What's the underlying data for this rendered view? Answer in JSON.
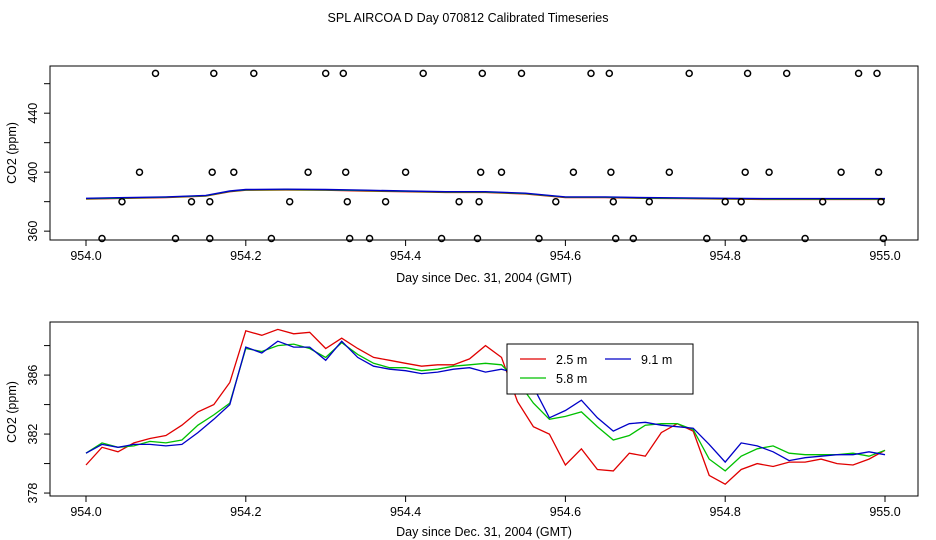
{
  "title": "SPL AIRCOA D  Day 070812  Calibrated Timeseries",
  "colors": {
    "s25": "#e00000",
    "s58": "#00c000",
    "s91": "#0000c8",
    "axis": "#000000"
  },
  "chart_data": [
    {
      "type": "scatter+line",
      "xlabel": "Day since Dec. 31, 2004 (GMT)",
      "ylabel": "CO2 (ppm)",
      "xlim": [
        954.0,
        955.0
      ],
      "ylim": [
        354,
        472
      ],
      "xticks": [
        954.0,
        954.2,
        954.4,
        954.6,
        954.8,
        955.0
      ],
      "xtick_labels": [
        "954.0",
        "954.2",
        "954.4",
        "954.6",
        "954.8",
        "955.0"
      ],
      "yticks": [
        360,
        400,
        440
      ],
      "ytick_labels": [
        "360",
        "400",
        "440"
      ],
      "points": [
        [
          954.02,
          355
        ],
        [
          954.045,
          380
        ],
        [
          954.067,
          400
        ],
        [
          954.087,
          467
        ],
        [
          954.112,
          355
        ],
        [
          954.132,
          380
        ],
        [
          954.155,
          380
        ],
        [
          954.155,
          355
        ],
        [
          954.158,
          400
        ],
        [
          954.16,
          467
        ],
        [
          954.185,
          400
        ],
        [
          954.21,
          467
        ],
        [
          954.232,
          355
        ],
        [
          954.255,
          380
        ],
        [
          954.278,
          400
        ],
        [
          954.3,
          467
        ],
        [
          954.322,
          467
        ],
        [
          954.325,
          400
        ],
        [
          954.327,
          380
        ],
        [
          954.33,
          355
        ],
        [
          954.355,
          355
        ],
        [
          954.375,
          380
        ],
        [
          954.4,
          400
        ],
        [
          954.422,
          467
        ],
        [
          954.445,
          355
        ],
        [
          954.467,
          380
        ],
        [
          954.49,
          355
        ],
        [
          954.492,
          380
        ],
        [
          954.494,
          400
        ],
        [
          954.496,
          467
        ],
        [
          954.52,
          400
        ],
        [
          954.545,
          467
        ],
        [
          954.567,
          355
        ],
        [
          954.588,
          380
        ],
        [
          954.61,
          400
        ],
        [
          954.632,
          467
        ],
        [
          954.655,
          467
        ],
        [
          954.657,
          400
        ],
        [
          954.66,
          380
        ],
        [
          954.663,
          355
        ],
        [
          954.685,
          355
        ],
        [
          954.705,
          380
        ],
        [
          954.73,
          400
        ],
        [
          954.755,
          467
        ],
        [
          954.777,
          355
        ],
        [
          954.8,
          380
        ],
        [
          954.82,
          380
        ],
        [
          954.823,
          355
        ],
        [
          954.825,
          400
        ],
        [
          954.828,
          467
        ],
        [
          954.855,
          400
        ],
        [
          954.877,
          467
        ],
        [
          954.9,
          355
        ],
        [
          954.922,
          380
        ],
        [
          954.945,
          400
        ],
        [
          954.967,
          467
        ],
        [
          954.99,
          467
        ],
        [
          954.992,
          400
        ],
        [
          954.995,
          380
        ],
        [
          954.998,
          355
        ]
      ],
      "series_smooth": {
        "x": [
          954.0,
          954.05,
          954.1,
          954.15,
          954.18,
          954.2,
          954.25,
          954.3,
          954.35,
          954.4,
          954.45,
          954.5,
          954.55,
          954.6,
          954.65,
          954.7,
          954.75,
          954.8,
          954.85,
          954.9,
          954.95,
          955.0
        ],
        "values": [
          382,
          382.5,
          383,
          384,
          387,
          388,
          388.2,
          388,
          387.5,
          387,
          386.5,
          386.5,
          385.5,
          383,
          383,
          382.5,
          382.3,
          382,
          381.8,
          381.8,
          381.8,
          381.8
        ]
      }
    },
    {
      "type": "line",
      "xlabel": "Day since Dec. 31, 2004 (GMT)",
      "ylabel": "CO2 (ppm)",
      "xlim": [
        954.0,
        955.0
      ],
      "ylim": [
        377.8,
        389.6
      ],
      "xticks": [
        954.0,
        954.2,
        954.4,
        954.6,
        954.8,
        955.0
      ],
      "xtick_labels": [
        "954.0",
        "954.2",
        "954.4",
        "954.6",
        "954.8",
        "955.0"
      ],
      "yticks": [
        378,
        382,
        386
      ],
      "ytick_labels": [
        "378",
        "382",
        "386"
      ],
      "legend": {
        "labels": [
          "2.5 m",
          "5.8 m",
          "9.1 m"
        ],
        "position": "upper-right"
      },
      "x": [
        954.0,
        954.02,
        954.04,
        954.06,
        954.08,
        954.1,
        954.12,
        954.14,
        954.16,
        954.18,
        954.2,
        954.22,
        954.24,
        954.26,
        954.28,
        954.3,
        954.32,
        954.34,
        954.36,
        954.38,
        954.4,
        954.42,
        954.44,
        954.46,
        954.48,
        954.5,
        954.52,
        954.54,
        954.56,
        954.58,
        954.6,
        954.62,
        954.64,
        954.66,
        954.68,
        954.7,
        954.72,
        954.74,
        954.76,
        954.78,
        954.8,
        954.82,
        954.84,
        954.86,
        954.88,
        954.9,
        954.92,
        954.94,
        954.96,
        954.98,
        955.0
      ],
      "series": [
        {
          "name": "2.5 m",
          "values": [
            379.9,
            381.1,
            380.8,
            381.4,
            381.7,
            381.9,
            382.6,
            383.5,
            384.0,
            385.5,
            389.0,
            388.7,
            389.1,
            388.8,
            388.9,
            387.8,
            388.5,
            387.8,
            387.2,
            387.0,
            386.8,
            386.6,
            386.7,
            386.7,
            387.1,
            388.0,
            387.2,
            384.2,
            382.5,
            382.0,
            379.9,
            381.0,
            379.6,
            379.5,
            380.7,
            380.5,
            382.1,
            382.7,
            382.2,
            379.2,
            378.6,
            379.6,
            380.0,
            379.8,
            380.1,
            380.1,
            380.3,
            380.0,
            379.9,
            380.3,
            380.9
          ]
        },
        {
          "name": "5.8 m",
          "values": [
            380.7,
            381.4,
            381.1,
            381.2,
            381.5,
            381.4,
            381.6,
            382.6,
            383.3,
            384.1,
            387.8,
            387.6,
            388.0,
            388.1,
            387.8,
            387.2,
            388.2,
            387.4,
            386.8,
            386.5,
            386.5,
            386.3,
            386.4,
            386.6,
            386.7,
            386.8,
            386.7,
            385.6,
            384.1,
            383.0,
            383.2,
            383.5,
            382.5,
            381.6,
            381.9,
            382.6,
            382.7,
            382.7,
            382.3,
            380.3,
            379.5,
            380.5,
            381.0,
            381.2,
            380.7,
            380.6,
            380.6,
            380.6,
            380.7,
            380.5,
            380.9
          ]
        },
        {
          "name": "9.1 m",
          "values": [
            380.7,
            381.3,
            381.1,
            381.3,
            381.3,
            381.2,
            381.3,
            382.1,
            383.0,
            384.0,
            387.9,
            387.5,
            388.3,
            387.9,
            387.9,
            387.0,
            388.3,
            387.2,
            386.6,
            386.4,
            386.3,
            386.1,
            386.2,
            386.4,
            386.5,
            386.2,
            386.4,
            386.1,
            385.2,
            383.1,
            383.6,
            384.3,
            383.1,
            382.2,
            382.7,
            382.8,
            382.6,
            382.5,
            382.4,
            381.3,
            380.1,
            381.4,
            381.2,
            380.8,
            380.2,
            380.4,
            380.5,
            380.6,
            380.6,
            380.8,
            380.6
          ]
        }
      ]
    }
  ]
}
